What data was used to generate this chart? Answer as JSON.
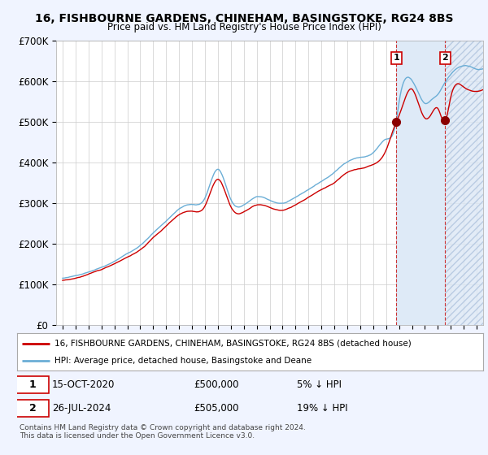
{
  "title": "16, FISHBOURNE GARDENS, CHINEHAM, BASINGSTOKE, RG24 8BS",
  "subtitle": "Price paid vs. HM Land Registry's House Price Index (HPI)",
  "ylim": [
    0,
    700000
  ],
  "yticks": [
    0,
    100000,
    200000,
    300000,
    400000,
    500000,
    600000,
    700000
  ],
  "ytick_labels": [
    "£0",
    "£100K",
    "£200K",
    "£300K",
    "£400K",
    "£500K",
    "£600K",
    "£700K"
  ],
  "hpi_color": "#6baed6",
  "price_color": "#cc0000",
  "sale1_x": 2020.79,
  "sale1_y": 500000,
  "sale2_x": 2024.56,
  "sale2_y": 505000,
  "sale1_label": "1",
  "sale2_label": "2",
  "legend_line1": "16, FISHBOURNE GARDENS, CHINEHAM, BASINGSTOKE, RG24 8BS (detached house)",
  "legend_line2": "HPI: Average price, detached house, Basingstoke and Deane",
  "ann1_num": "1",
  "ann1_date": "15-OCT-2020",
  "ann1_price": "£500,000",
  "ann1_hpi": "5% ↓ HPI",
  "ann2_num": "2",
  "ann2_date": "26-JUL-2024",
  "ann2_price": "£505,000",
  "ann2_hpi": "19% ↓ HPI",
  "footnote": "Contains HM Land Registry data © Crown copyright and database right 2024.\nThis data is licensed under the Open Government Licence v3.0.",
  "bg_color": "#f0f4ff",
  "plot_bg": "#ffffff",
  "grid_color": "#cccccc",
  "blue_region_color": "#deeaf7",
  "hatch_color": "#dde8f5",
  "xmin": 1994.5,
  "xmax": 2027.5,
  "blue_region_start": 2020.79,
  "blue_region_end": 2024.56,
  "hatch_region_start": 2024.56,
  "hatch_region_end": 2027.5
}
